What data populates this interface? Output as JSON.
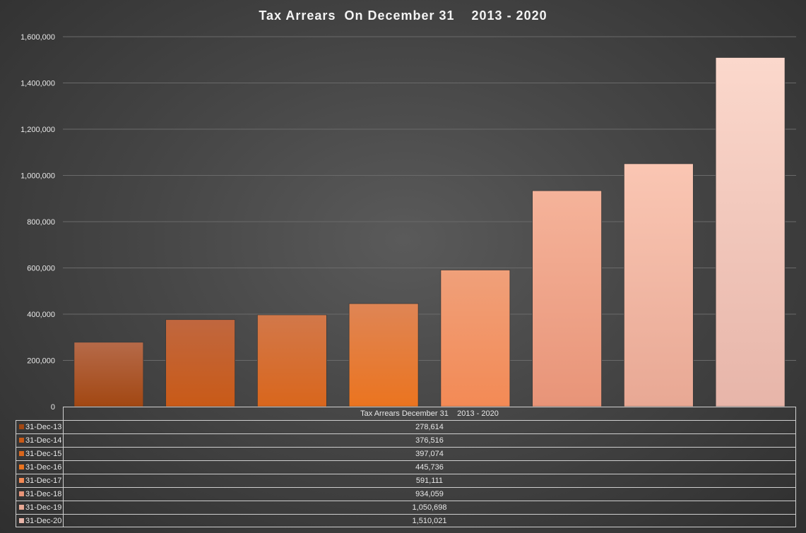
{
  "chart_data": {
    "type": "bar",
    "title": "Tax Arrears  On December 31    2013 - 2020",
    "categories": [
      "31-Dec-13",
      "31-Dec-14",
      "31-Dec-15",
      "31-Dec-16",
      "31-Dec-17",
      "31-Dec-18",
      "31-Dec-19",
      "31-Dec-20"
    ],
    "series": [
      {
        "name": "Tax Arrears December 31    2013 - 2020",
        "values": [
          278614,
          376516,
          397074,
          445736,
          591111,
          934059,
          1050698,
          1510021
        ]
      }
    ],
    "value_labels": [
      "278,614",
      "376,516",
      "397,074",
      "445,736",
      "591,111",
      "934,059",
      "1,050,698",
      "1,510,021"
    ],
    "ylim": [
      0,
      1600000
    ],
    "yticks": [
      0,
      200000,
      400000,
      600000,
      800000,
      1000000,
      1200000,
      1400000,
      1600000
    ],
    "ytick_labels": [
      "0",
      "200,000",
      "400,000",
      "600,000",
      "800,000",
      "1,000,000",
      "1,200,000",
      "1,400,000",
      "1,600,000"
    ],
    "grid": true,
    "legend": "data-table-below",
    "bar_colors": [
      [
        "#b66a49",
        "#a24712"
      ],
      [
        "#c0673f",
        "#c95a17"
      ],
      [
        "#d2784a",
        "#d9661c"
      ],
      [
        "#df8555",
        "#eb741f"
      ],
      [
        "#f0a07a",
        "#f38a55"
      ],
      [
        "#f5b39a",
        "#e89478"
      ],
      [
        "#fac6b3",
        "#e8a894"
      ],
      [
        "#fbd8cc",
        "#e7b5a9"
      ]
    ]
  }
}
